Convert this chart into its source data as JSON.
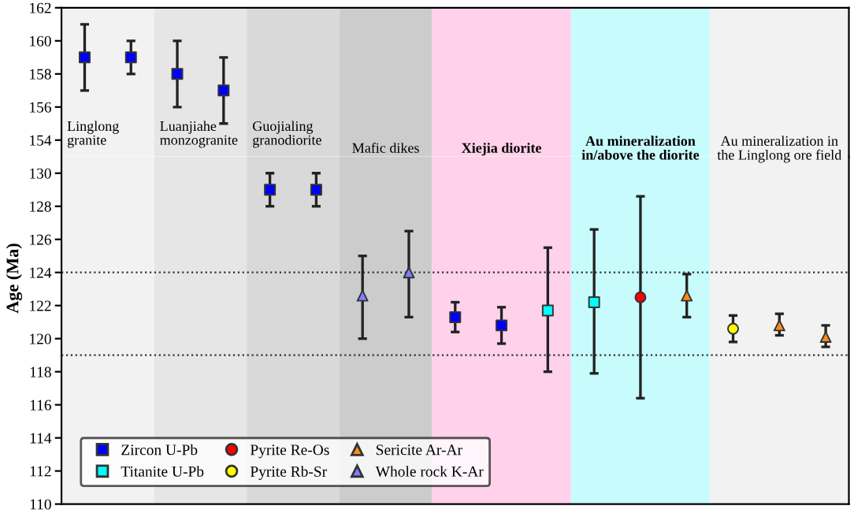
{
  "chart_data": [
    {
      "type": "scatter",
      "categories": [
        null,
        null,
        null,
        null,
        null,
        null,
        null,
        null,
        null,
        null,
        null,
        null,
        null,
        null,
        null,
        null,
        null
      ],
      "ylim": [
        153,
        162
      ],
      "yticks": [
        154,
        156,
        158,
        160,
        162
      ],
      "tick_labels": "y",
      "grid": false,
      "series": [
        {
          "color": "#0000ff",
          "marker": "square",
          "values": [
            159,
            159,
            158,
            157,
            null,
            null,
            null,
            null,
            null,
            null,
            null,
            null,
            null,
            null,
            null,
            null,
            null
          ],
          "errors": [
            [
              157,
              161
            ],
            [
              158,
              160
            ],
            [
              156,
              160
            ],
            [
              155,
              159
            ],
            null,
            null,
            null,
            null,
            null,
            null,
            null,
            null,
            null,
            null,
            null,
            null,
            null
          ]
        }
      ],
      "annotations": [
        "Linglong\ngranite",
        "Luanjiahe\nmonzogranite",
        "Guojialing\ngranodiorite",
        "Mafic dikes",
        "Xiejia diorite",
        "Au mineralization\nin/above the diorite",
        "Au mineralization in\nthe Linglong ore field"
      ]
    },
    {
      "type": "scatter",
      "categories": [
        null,
        null,
        null,
        null,
        null,
        null,
        null,
        null,
        null,
        null,
        null,
        null,
        null,
        null,
        null,
        null,
        null
      ],
      "ylim": [
        110,
        131
      ],
      "yticks": [
        110,
        112,
        114,
        116,
        118,
        120,
        122,
        124,
        126,
        128,
        130
      ],
      "tick_labels": "y",
      "grid": false,
      "ylabel": "Age (Ma)",
      "legend": "bottom left",
      "series": [
        {
          "name": "Zircon U-Pb",
          "color": "#0000ff",
          "marker": "square",
          "values": [
            null,
            null,
            null,
            null,
            129,
            129,
            null,
            null,
            121.3,
            120.8,
            null,
            null,
            null,
            null,
            null,
            null,
            null
          ],
          "errors": [
            null,
            null,
            null,
            null,
            [
              128,
              130
            ],
            [
              128,
              130
            ],
            null,
            null,
            [
              120.4,
              122.2
            ],
            [
              119.7,
              121.9
            ],
            null,
            null,
            null,
            null,
            null,
            null,
            null
          ]
        },
        {
          "name": "Titanite U-Pb",
          "color": "#00ffff",
          "marker": "square",
          "values": [
            null,
            null,
            null,
            null,
            null,
            null,
            null,
            null,
            null,
            null,
            121.7,
            122.2,
            null,
            null,
            null,
            null,
            null
          ],
          "errors": [
            null,
            null,
            null,
            null,
            null,
            null,
            null,
            null,
            null,
            null,
            [
              118,
              125.5
            ],
            [
              117.9,
              126.6
            ],
            null,
            null,
            null,
            null,
            null
          ]
        },
        {
          "name": "Pyrite Re-Os",
          "color": "#ff0000",
          "marker": "circle",
          "values": [
            null,
            null,
            null,
            null,
            null,
            null,
            null,
            null,
            null,
            null,
            null,
            null,
            122.5,
            null,
            null,
            null,
            null
          ],
          "errors": [
            null,
            null,
            null,
            null,
            null,
            null,
            null,
            null,
            null,
            null,
            null,
            null,
            [
              116.4,
              128.6
            ],
            null,
            null,
            null,
            null
          ]
        },
        {
          "name": "Pyrite Rb-Sr",
          "color": "#ffff00",
          "marker": "circle",
          "values": [
            null,
            null,
            null,
            null,
            null,
            null,
            null,
            null,
            null,
            null,
            null,
            null,
            null,
            null,
            120.6,
            null,
            null
          ],
          "errors": [
            null,
            null,
            null,
            null,
            null,
            null,
            null,
            null,
            null,
            null,
            null,
            null,
            null,
            null,
            [
              119.8,
              121.4
            ],
            null,
            null
          ]
        },
        {
          "name": "Sericite Ar-Ar",
          "color": "#ff8c1a",
          "marker": "triangle",
          "values": [
            null,
            null,
            null,
            null,
            null,
            null,
            null,
            null,
            null,
            null,
            null,
            null,
            null,
            122.6,
            null,
            120.8,
            120.1
          ],
          "errors": [
            null,
            null,
            null,
            null,
            null,
            null,
            null,
            null,
            null,
            null,
            null,
            null,
            null,
            [
              121.3,
              123.9
            ],
            null,
            [
              120.2,
              121.5
            ],
            [
              119.5,
              120.8
            ]
          ]
        },
        {
          "name": "Whole rock K-Ar",
          "color": "#8080ff",
          "marker": "triangle",
          "values": [
            null,
            null,
            null,
            null,
            null,
            null,
            122.6,
            124,
            null,
            null,
            null,
            null,
            null,
            null,
            null,
            null,
            null
          ],
          "errors": [
            null,
            null,
            null,
            null,
            null,
            null,
            [
              120,
              125
            ],
            [
              121.3,
              126.5
            ],
            null,
            null,
            null,
            null,
            null,
            null,
            null,
            null,
            null
          ]
        }
      ],
      "ref_lines": [
        {
          "axis": "y",
          "value": 124,
          "line_style": "dotted"
        },
        {
          "axis": "y",
          "value": 119,
          "line_style": "dotted"
        }
      ]
    }
  ]
}
